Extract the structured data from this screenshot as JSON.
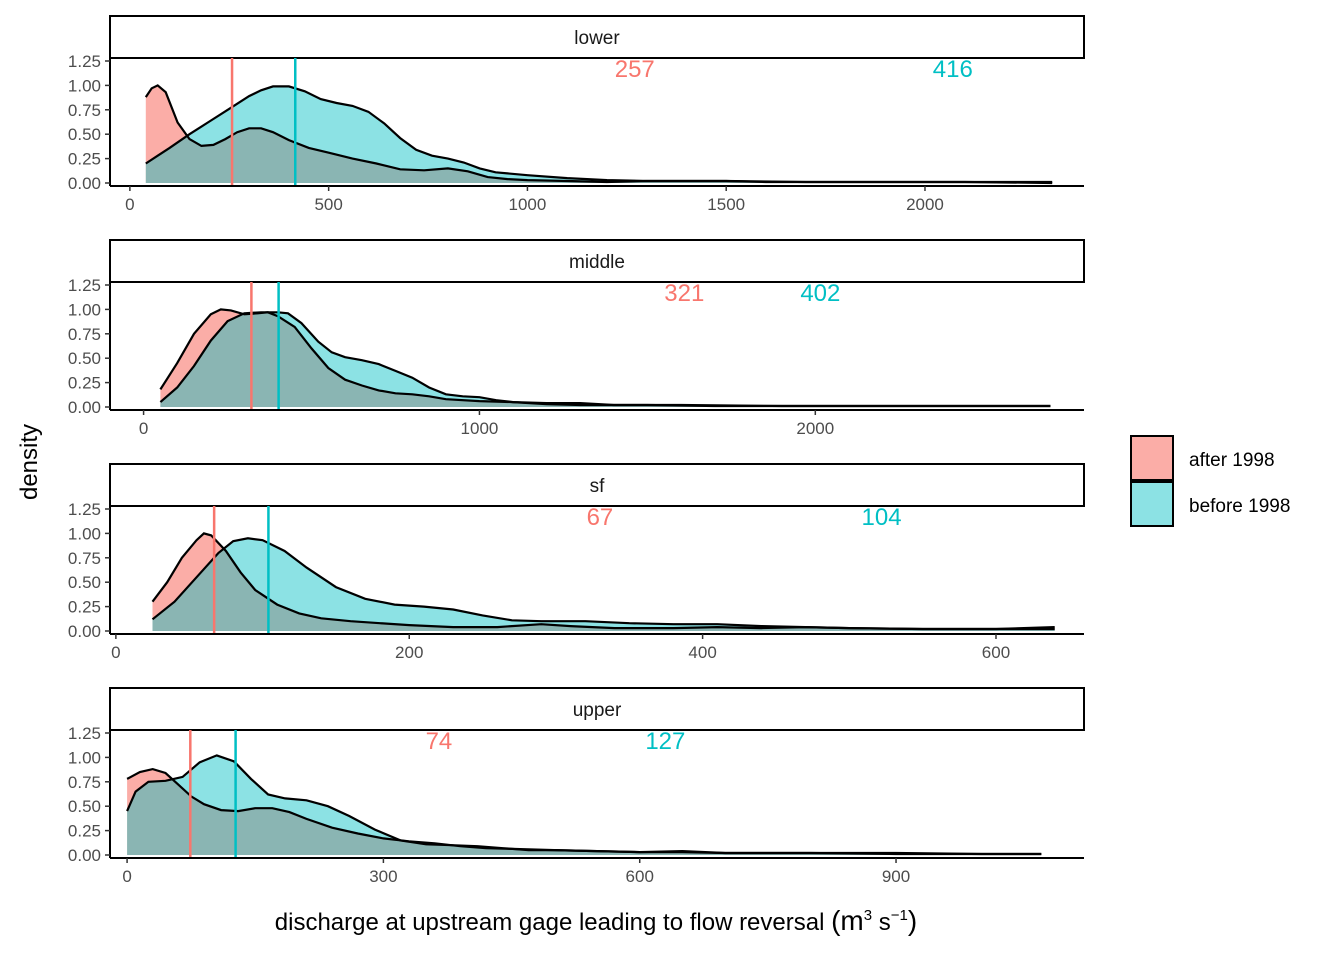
{
  "chart_data": {
    "type": "area",
    "subtype": "faceted density",
    "ylabel": "density",
    "xlabel_main": "discharge at upstream gage leading to flow reversal ",
    "xlabel_unit": "(m3 s−1)",
    "xlabel_parts": [
      "(m",
      "3",
      " s",
      "−1",
      ")"
    ],
    "legend": {
      "placement": "right",
      "entries": [
        {
          "label": "after 1998",
          "color": "#F8766D"
        },
        {
          "label": "before 1998",
          "color": "#00BFC4"
        }
      ]
    },
    "colors": {
      "after": "#F8766D",
      "before": "#00BFC4"
    },
    "yticks": [
      "0.00",
      "0.25",
      "0.50",
      "0.75",
      "1.00",
      "1.25"
    ],
    "ylim": [
      0,
      1.25
    ],
    "facets": [
      {
        "name": "lower",
        "xlim": [
          -50,
          2400
        ],
        "xticks": [
          0,
          500,
          1000,
          1500,
          2000
        ],
        "xtick_labels": [
          "0",
          "500",
          "1000",
          "1500",
          "2000"
        ],
        "median_after": 257,
        "median_before": 416,
        "label_after": "257",
        "label_before": "416",
        "label_x_after": 1270,
        "label_x_before": 2070,
        "after": [
          [
            40,
            0.88
          ],
          [
            55,
            0.97
          ],
          [
            70,
            1.0
          ],
          [
            90,
            0.93
          ],
          [
            120,
            0.62
          ],
          [
            150,
            0.45
          ],
          [
            180,
            0.38
          ],
          [
            210,
            0.39
          ],
          [
            240,
            0.45
          ],
          [
            270,
            0.52
          ],
          [
            300,
            0.56
          ],
          [
            330,
            0.56
          ],
          [
            360,
            0.52
          ],
          [
            400,
            0.44
          ],
          [
            450,
            0.36
          ],
          [
            500,
            0.31
          ],
          [
            560,
            0.25
          ],
          [
            620,
            0.2
          ],
          [
            680,
            0.14
          ],
          [
            740,
            0.13
          ],
          [
            800,
            0.15
          ],
          [
            850,
            0.12
          ],
          [
            900,
            0.06
          ],
          [
            950,
            0.04
          ],
          [
            1000,
            0.03
          ],
          [
            1100,
            0.02
          ],
          [
            1200,
            0.01
          ],
          [
            1300,
            0.02
          ],
          [
            1500,
            0.02
          ],
          [
            1700,
            0.01
          ],
          [
            1900,
            0.01
          ],
          [
            2100,
            0.01
          ],
          [
            2320,
            0.0
          ]
        ],
        "before": [
          [
            40,
            0.2
          ],
          [
            70,
            0.28
          ],
          [
            100,
            0.36
          ],
          [
            150,
            0.5
          ],
          [
            200,
            0.63
          ],
          [
            250,
            0.76
          ],
          [
            300,
            0.89
          ],
          [
            330,
            0.95
          ],
          [
            360,
            0.99
          ],
          [
            400,
            0.99
          ],
          [
            440,
            0.94
          ],
          [
            480,
            0.86
          ],
          [
            520,
            0.82
          ],
          [
            560,
            0.79
          ],
          [
            600,
            0.73
          ],
          [
            640,
            0.61
          ],
          [
            680,
            0.46
          ],
          [
            720,
            0.34
          ],
          [
            760,
            0.28
          ],
          [
            800,
            0.25
          ],
          [
            840,
            0.21
          ],
          [
            880,
            0.15
          ],
          [
            920,
            0.11
          ],
          [
            1000,
            0.08
          ],
          [
            1100,
            0.05
          ],
          [
            1200,
            0.03
          ],
          [
            1300,
            0.02
          ],
          [
            1400,
            0.02
          ],
          [
            1500,
            0.02
          ],
          [
            1600,
            0.01
          ],
          [
            1800,
            0.01
          ],
          [
            2000,
            0.01
          ],
          [
            2200,
            0.01
          ],
          [
            2320,
            0.01
          ]
        ]
      },
      {
        "name": "middle",
        "xlim": [
          -100,
          2800
        ],
        "xticks": [
          0,
          1000,
          2000
        ],
        "xtick_labels": [
          "0",
          "1000",
          "2000"
        ],
        "median_after": 321,
        "median_before": 402,
        "label_after": "321",
        "label_before": "402",
        "label_x_after": 1610,
        "label_x_before": 2015,
        "after": [
          [
            50,
            0.18
          ],
          [
            100,
            0.45
          ],
          [
            150,
            0.75
          ],
          [
            200,
            0.95
          ],
          [
            230,
            1.0
          ],
          [
            260,
            0.99
          ],
          [
            300,
            0.95
          ],
          [
            340,
            0.96
          ],
          [
            370,
            0.97
          ],
          [
            400,
            0.93
          ],
          [
            450,
            0.82
          ],
          [
            500,
            0.6
          ],
          [
            550,
            0.4
          ],
          [
            600,
            0.28
          ],
          [
            650,
            0.22
          ],
          [
            700,
            0.17
          ],
          [
            750,
            0.14
          ],
          [
            800,
            0.13
          ],
          [
            850,
            0.11
          ],
          [
            900,
            0.08
          ],
          [
            1000,
            0.06
          ],
          [
            1100,
            0.05
          ],
          [
            1200,
            0.03
          ],
          [
            1300,
            0.02
          ],
          [
            1500,
            0.02
          ],
          [
            1700,
            0.01
          ],
          [
            2000,
            0.01
          ],
          [
            2300,
            0.01
          ],
          [
            2700,
            0.01
          ]
        ],
        "before": [
          [
            50,
            0.05
          ],
          [
            100,
            0.2
          ],
          [
            150,
            0.42
          ],
          [
            200,
            0.68
          ],
          [
            250,
            0.88
          ],
          [
            300,
            0.96
          ],
          [
            350,
            0.97
          ],
          [
            400,
            0.97
          ],
          [
            430,
            0.96
          ],
          [
            470,
            0.86
          ],
          [
            520,
            0.67
          ],
          [
            560,
            0.56
          ],
          [
            600,
            0.51
          ],
          [
            650,
            0.48
          ],
          [
            700,
            0.44
          ],
          [
            750,
            0.37
          ],
          [
            800,
            0.3
          ],
          [
            850,
            0.2
          ],
          [
            900,
            0.13
          ],
          [
            950,
            0.11
          ],
          [
            1000,
            0.1
          ],
          [
            1050,
            0.07
          ],
          [
            1100,
            0.05
          ],
          [
            1200,
            0.04
          ],
          [
            1300,
            0.04
          ],
          [
            1400,
            0.02
          ],
          [
            1600,
            0.02
          ],
          [
            1900,
            0.01
          ],
          [
            2200,
            0.01
          ],
          [
            2500,
            0.01
          ],
          [
            2700,
            0.01
          ]
        ]
      },
      {
        "name": "sf",
        "xlim": [
          -4,
          660
        ],
        "xticks": [
          0,
          200,
          400,
          600
        ],
        "xtick_labels": [
          "0",
          "200",
          "400",
          "600"
        ],
        "median_after": 67,
        "median_before": 104,
        "label_after": "67",
        "label_before": "104",
        "label_x_after": 330,
        "label_x_before": 522,
        "after": [
          [
            25,
            0.3
          ],
          [
            35,
            0.5
          ],
          [
            45,
            0.75
          ],
          [
            55,
            0.93
          ],
          [
            60,
            1.0
          ],
          [
            65,
            0.98
          ],
          [
            75,
            0.82
          ],
          [
            85,
            0.6
          ],
          [
            95,
            0.42
          ],
          [
            110,
            0.27
          ],
          [
            125,
            0.18
          ],
          [
            140,
            0.13
          ],
          [
            160,
            0.1
          ],
          [
            180,
            0.08
          ],
          [
            200,
            0.06
          ],
          [
            230,
            0.04
          ],
          [
            260,
            0.04
          ],
          [
            290,
            0.07
          ],
          [
            310,
            0.05
          ],
          [
            340,
            0.03
          ],
          [
            380,
            0.03
          ],
          [
            410,
            0.04
          ],
          [
            440,
            0.03
          ],
          [
            470,
            0.04
          ],
          [
            500,
            0.03
          ],
          [
            550,
            0.02
          ],
          [
            600,
            0.02
          ],
          [
            640,
            0.04
          ]
        ],
        "before": [
          [
            25,
            0.12
          ],
          [
            40,
            0.3
          ],
          [
            55,
            0.55
          ],
          [
            70,
            0.8
          ],
          [
            80,
            0.92
          ],
          [
            90,
            0.95
          ],
          [
            100,
            0.93
          ],
          [
            115,
            0.82
          ],
          [
            130,
            0.65
          ],
          [
            150,
            0.45
          ],
          [
            170,
            0.33
          ],
          [
            190,
            0.27
          ],
          [
            210,
            0.25
          ],
          [
            230,
            0.22
          ],
          [
            250,
            0.16
          ],
          [
            270,
            0.11
          ],
          [
            290,
            0.1
          ],
          [
            320,
            0.1
          ],
          [
            350,
            0.08
          ],
          [
            380,
            0.07
          ],
          [
            410,
            0.07
          ],
          [
            440,
            0.05
          ],
          [
            470,
            0.04
          ],
          [
            500,
            0.03
          ],
          [
            550,
            0.02
          ],
          [
            600,
            0.02
          ],
          [
            640,
            0.02
          ]
        ]
      },
      {
        "name": "upper",
        "xlim": [
          -20,
          1120
        ],
        "xticks": [
          0,
          300,
          600,
          900
        ],
        "xtick_labels": [
          "0",
          "300",
          "600",
          "900"
        ],
        "median_after": 74,
        "median_before": 127,
        "label_after": "74",
        "label_before": "127",
        "label_x_after": 365,
        "label_x_before": 630,
        "after": [
          [
            0,
            0.78
          ],
          [
            15,
            0.85
          ],
          [
            30,
            0.88
          ],
          [
            45,
            0.84
          ],
          [
            60,
            0.72
          ],
          [
            75,
            0.6
          ],
          [
            90,
            0.52
          ],
          [
            110,
            0.46
          ],
          [
            130,
            0.45
          ],
          [
            150,
            0.48
          ],
          [
            170,
            0.48
          ],
          [
            190,
            0.44
          ],
          [
            210,
            0.37
          ],
          [
            240,
            0.28
          ],
          [
            270,
            0.22
          ],
          [
            300,
            0.17
          ],
          [
            330,
            0.14
          ],
          [
            360,
            0.12
          ],
          [
            390,
            0.09
          ],
          [
            420,
            0.07
          ],
          [
            460,
            0.06
          ],
          [
            500,
            0.05
          ],
          [
            550,
            0.04
          ],
          [
            600,
            0.03
          ],
          [
            650,
            0.03
          ],
          [
            700,
            0.02
          ],
          [
            800,
            0.02
          ],
          [
            900,
            0.01
          ],
          [
            1000,
            0.01
          ],
          [
            1070,
            0.01
          ]
        ],
        "before": [
          [
            0,
            0.45
          ],
          [
            10,
            0.65
          ],
          [
            25,
            0.75
          ],
          [
            45,
            0.76
          ],
          [
            65,
            0.8
          ],
          [
            85,
            0.95
          ],
          [
            105,
            1.02
          ],
          [
            125,
            0.96
          ],
          [
            145,
            0.78
          ],
          [
            165,
            0.62
          ],
          [
            185,
            0.58
          ],
          [
            210,
            0.56
          ],
          [
            235,
            0.5
          ],
          [
            260,
            0.4
          ],
          [
            290,
            0.26
          ],
          [
            320,
            0.15
          ],
          [
            350,
            0.11
          ],
          [
            380,
            0.1
          ],
          [
            410,
            0.09
          ],
          [
            440,
            0.07
          ],
          [
            470,
            0.05
          ],
          [
            500,
            0.05
          ],
          [
            550,
            0.04
          ],
          [
            600,
            0.03
          ],
          [
            650,
            0.04
          ],
          [
            700,
            0.02
          ],
          [
            800,
            0.02
          ],
          [
            900,
            0.02
          ],
          [
            1000,
            0.01
          ],
          [
            1070,
            0.01
          ]
        ]
      }
    ]
  }
}
